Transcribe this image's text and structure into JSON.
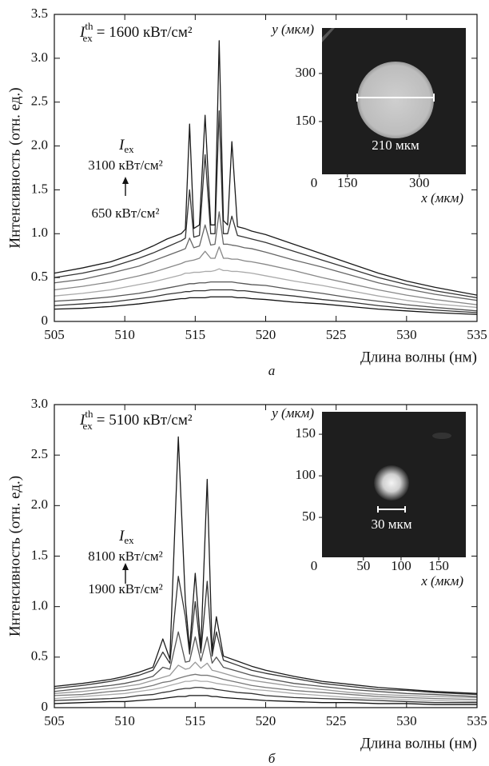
{
  "chart_data": [
    {
      "type": "line",
      "panel_label": "а",
      "x_label": "Длина волны (нм)",
      "y_label": "Интенсивность (отн. ед.)",
      "threshold": {
        "symbol": "I",
        "sup": "th",
        "sub": "ex",
        "text": "= 1600 кВт/см²"
      },
      "annotation": {
        "symbol": "I",
        "sub": "ex",
        "upper": "3100 кВт/см²",
        "lower": "650 кВт/см²"
      },
      "xlim": [
        505,
        535
      ],
      "xticks": [
        505,
        510,
        515,
        520,
        525,
        530,
        535
      ],
      "ylim": [
        0,
        3.5
      ],
      "yticks": [
        0,
        0.5,
        {
          "value": 1,
          "label": "1.0"
        },
        1.5,
        {
          "value": 2,
          "label": "2.0"
        },
        2.5,
        {
          "value": 3,
          "label": "3.0"
        },
        3.5
      ],
      "x": [
        505,
        507,
        509,
        511,
        512,
        513,
        514,
        514.3,
        514.6,
        514.9,
        515.3,
        515.7,
        516.1,
        516.4,
        516.7,
        517,
        517.3,
        517.6,
        518,
        518.5,
        519,
        520,
        522,
        524,
        526,
        528,
        530,
        532,
        535
      ],
      "series": [
        {
          "color": "#111111",
          "values": [
            0.14,
            0.15,
            0.17,
            0.2,
            0.22,
            0.24,
            0.26,
            0.26,
            0.27,
            0.27,
            0.27,
            0.27,
            0.28,
            0.28,
            0.28,
            0.28,
            0.28,
            0.28,
            0.27,
            0.27,
            0.26,
            0.25,
            0.22,
            0.2,
            0.17,
            0.14,
            0.12,
            0.1,
            0.08
          ]
        },
        {
          "color": "#333333",
          "values": [
            0.18,
            0.2,
            0.22,
            0.26,
            0.28,
            0.31,
            0.33,
            0.34,
            0.34,
            0.35,
            0.35,
            0.35,
            0.36,
            0.36,
            0.36,
            0.36,
            0.36,
            0.36,
            0.35,
            0.35,
            0.34,
            0.32,
            0.29,
            0.25,
            0.22,
            0.18,
            0.15,
            0.13,
            0.1
          ]
        },
        {
          "color": "#555555",
          "values": [
            0.23,
            0.25,
            0.28,
            0.32,
            0.35,
            0.38,
            0.41,
            0.42,
            0.43,
            0.43,
            0.44,
            0.44,
            0.45,
            0.45,
            0.45,
            0.45,
            0.45,
            0.45,
            0.44,
            0.43,
            0.42,
            0.41,
            0.36,
            0.32,
            0.27,
            0.23,
            0.19,
            0.16,
            0.12
          ]
        },
        {
          "color": "#aaaaaa",
          "values": [
            0.29,
            0.32,
            0.36,
            0.42,
            0.45,
            0.49,
            0.53,
            0.55,
            0.55,
            0.56,
            0.56,
            0.57,
            0.57,
            0.58,
            0.6,
            0.58,
            0.58,
            0.57,
            0.57,
            0.56,
            0.55,
            0.52,
            0.46,
            0.41,
            0.35,
            0.29,
            0.24,
            0.2,
            0.16
          ]
        },
        {
          "color": "#888888",
          "values": [
            0.36,
            0.4,
            0.45,
            0.52,
            0.56,
            0.61,
            0.66,
            0.68,
            0.69,
            0.7,
            0.72,
            0.8,
            0.72,
            0.72,
            0.85,
            0.72,
            0.72,
            0.71,
            0.71,
            0.69,
            0.68,
            0.65,
            0.58,
            0.5,
            0.43,
            0.36,
            0.3,
            0.25,
            0.19
          ]
        },
        {
          "color": "#666666",
          "values": [
            0.44,
            0.48,
            0.55,
            0.63,
            0.69,
            0.75,
            0.81,
            0.83,
            0.95,
            0.84,
            0.86,
            1.1,
            0.87,
            0.88,
            1.25,
            0.88,
            0.88,
            0.87,
            0.86,
            0.84,
            0.83,
            0.79,
            0.7,
            0.62,
            0.53,
            0.44,
            0.37,
            0.31,
            0.24
          ]
        },
        {
          "color": "#333333",
          "values": [
            0.5,
            0.55,
            0.62,
            0.72,
            0.78,
            0.85,
            0.92,
            0.95,
            1.5,
            0.96,
            0.98,
            1.9,
            1.0,
            1.0,
            2.4,
            1.0,
            1.0,
            1.2,
            0.98,
            0.96,
            0.94,
            0.9,
            0.8,
            0.7,
            0.6,
            0.5,
            0.42,
            0.35,
            0.27
          ]
        },
        {
          "color": "#1a1a1a",
          "values": [
            0.55,
            0.61,
            0.68,
            0.79,
            0.86,
            0.94,
            1.0,
            1.05,
            2.25,
            1.06,
            1.1,
            2.35,
            1.1,
            1.1,
            3.2,
            1.15,
            1.1,
            2.05,
            1.08,
            1.06,
            1.03,
            0.99,
            0.88,
            0.77,
            0.66,
            0.55,
            0.46,
            0.39,
            0.3
          ]
        }
      ],
      "inset": {
        "xlim": [
          97,
          397
        ],
        "ylim": [
          -15,
          442
        ],
        "xticks": [
          150,
          300
        ],
        "yticks": [
          150,
          300
        ],
        "x_label": "x (мкм)",
        "y_label": "y (мкм)",
        "origin_label": "0",
        "scale_label": "210 мкм"
      }
    },
    {
      "type": "line",
      "panel_label": "б",
      "x_label": "Длина волны (нм)",
      "y_label": "Интенсивность (отн. ед.)",
      "threshold": {
        "symbol": "I",
        "sup": "th",
        "sub": "ex",
        "text": "= 5100 кВт/см²"
      },
      "annotation": {
        "symbol": "I",
        "sub": "ex",
        "upper": "8100 кВт/см²",
        "lower": "1900 кВт/см²"
      },
      "xlim": [
        505,
        535
      ],
      "xticks": [
        505,
        510,
        515,
        520,
        525,
        530,
        535
      ],
      "ylim": [
        0,
        3
      ],
      "yticks": [
        0,
        0.5,
        {
          "value": 1,
          "label": "1.0"
        },
        1.5,
        {
          "value": 2,
          "label": "2.0"
        },
        2.5,
        {
          "value": 3,
          "label": "3.0"
        }
      ],
      "x": [
        505,
        507,
        509,
        510,
        511,
        512,
        512.7,
        513.2,
        513.8,
        514.3,
        514.6,
        515,
        515.4,
        515.85,
        516.2,
        516.5,
        517,
        518,
        519,
        520,
        522,
        524,
        526,
        528,
        530,
        532,
        535
      ],
      "series": [
        {
          "color": "#111111",
          "values": [
            0.04,
            0.05,
            0.06,
            0.06,
            0.07,
            0.08,
            0.09,
            0.1,
            0.11,
            0.11,
            0.12,
            0.12,
            0.12,
            0.12,
            0.11,
            0.11,
            0.1,
            0.09,
            0.08,
            0.07,
            0.06,
            0.05,
            0.05,
            0.04,
            0.04,
            0.03,
            0.03
          ]
        },
        {
          "color": "#333333",
          "values": [
            0.07,
            0.08,
            0.09,
            0.1,
            0.12,
            0.13,
            0.15,
            0.16,
            0.18,
            0.19,
            0.19,
            0.2,
            0.2,
            0.19,
            0.19,
            0.18,
            0.17,
            0.15,
            0.14,
            0.12,
            0.1,
            0.09,
            0.08,
            0.07,
            0.06,
            0.05,
            0.05
          ]
        },
        {
          "color": "#aaaaaa",
          "values": [
            0.09,
            0.11,
            0.13,
            0.14,
            0.16,
            0.18,
            0.2,
            0.22,
            0.24,
            0.26,
            0.26,
            0.27,
            0.26,
            0.26,
            0.25,
            0.24,
            0.23,
            0.21,
            0.18,
            0.17,
            0.14,
            0.12,
            0.1,
            0.09,
            0.08,
            0.07,
            0.06
          ]
        },
        {
          "color": "#777777",
          "values": [
            0.12,
            0.13,
            0.16,
            0.17,
            0.19,
            0.22,
            0.25,
            0.26,
            0.29,
            0.31,
            0.32,
            0.33,
            0.32,
            0.32,
            0.31,
            0.3,
            0.28,
            0.25,
            0.22,
            0.2,
            0.17,
            0.15,
            0.13,
            0.11,
            0.1,
            0.09,
            0.08
          ]
        },
        {
          "color": "#999999",
          "values": [
            0.14,
            0.16,
            0.19,
            0.21,
            0.23,
            0.27,
            0.3,
            0.32,
            0.42,
            0.38,
            0.39,
            0.45,
            0.39,
            0.44,
            0.37,
            0.36,
            0.34,
            0.3,
            0.27,
            0.25,
            0.21,
            0.18,
            0.15,
            0.13,
            0.12,
            0.11,
            0.1
          ]
        },
        {
          "color": "#555555",
          "values": [
            0.16,
            0.19,
            0.22,
            0.24,
            0.27,
            0.31,
            0.4,
            0.38,
            0.75,
            0.45,
            0.46,
            0.7,
            0.46,
            0.7,
            0.44,
            0.5,
            0.4,
            0.36,
            0.32,
            0.29,
            0.24,
            0.21,
            0.18,
            0.16,
            0.14,
            0.13,
            0.11
          ]
        },
        {
          "color": "#333333",
          "values": [
            0.19,
            0.22,
            0.26,
            0.29,
            0.32,
            0.37,
            0.55,
            0.44,
            1.3,
            0.9,
            0.53,
            1.05,
            0.54,
            1.25,
            0.51,
            0.75,
            0.47,
            0.42,
            0.37,
            0.34,
            0.29,
            0.24,
            0.21,
            0.18,
            0.17,
            0.15,
            0.13
          ]
        },
        {
          "color": "#1a1a1a",
          "values": [
            0.21,
            0.24,
            0.28,
            0.31,
            0.35,
            0.4,
            0.68,
            0.48,
            2.68,
            1.05,
            0.58,
            1.33,
            0.59,
            2.26,
            0.56,
            0.9,
            0.51,
            0.46,
            0.41,
            0.37,
            0.31,
            0.26,
            0.23,
            0.2,
            0.18,
            0.16,
            0.14
          ]
        }
      ],
      "inset": {
        "xlim": [
          -5,
          186
        ],
        "ylim": [
          2,
          177
        ],
        "xticks": [
          50,
          100,
          150
        ],
        "yticks": [
          50,
          100,
          150
        ],
        "x_label": "x (мкм)",
        "y_label": "y (мкм)",
        "origin_label": "0",
        "scale_label": "30 мкм"
      }
    }
  ]
}
